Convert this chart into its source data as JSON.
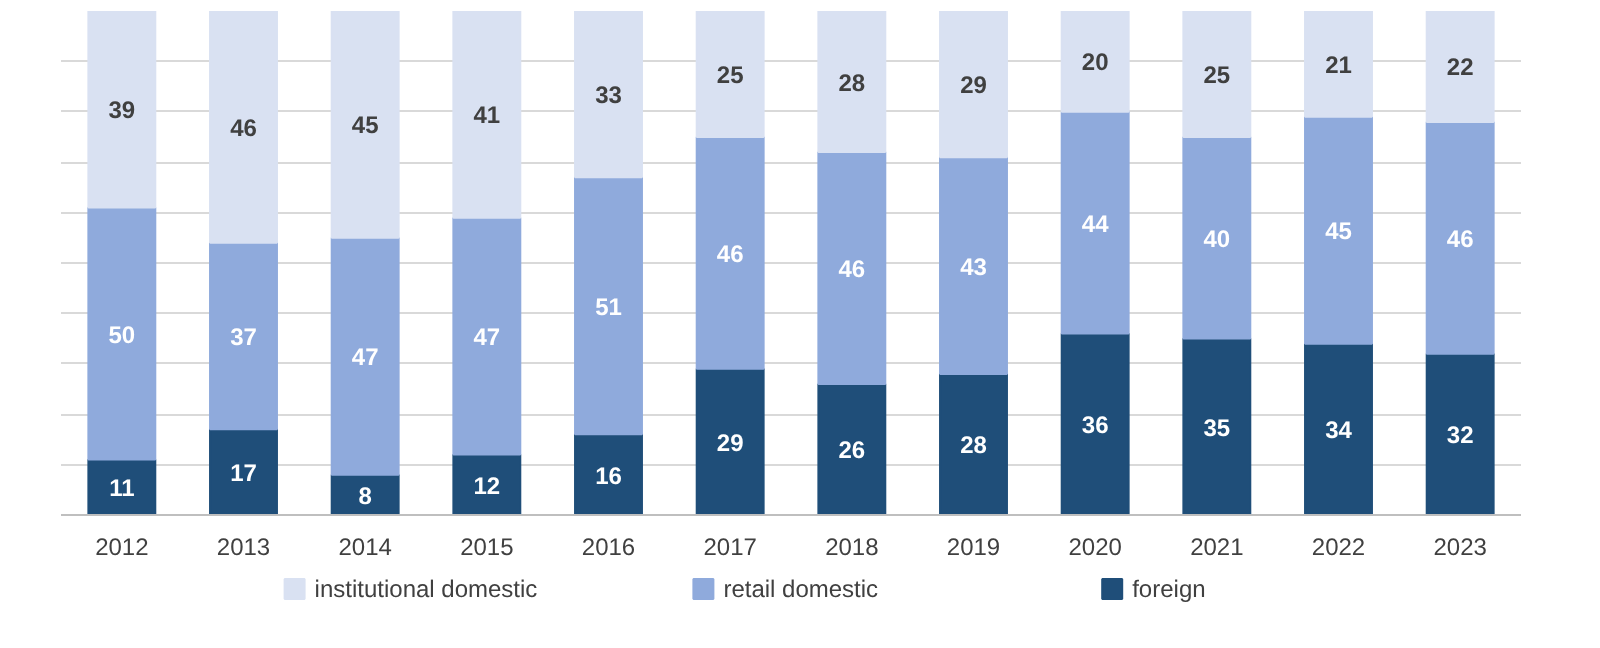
{
  "chart_data": {
    "type": "bar",
    "stacked": true,
    "data_labels": true,
    "grid": "y",
    "legend": "bottom",
    "tick_labels": "x",
    "categories": [
      "2012",
      "2013",
      "2014",
      "2015",
      "2016",
      "2017",
      "2018",
      "2019",
      "2020",
      "2021",
      "2022",
      "2023"
    ],
    "ylim": [
      0,
      100
    ],
    "yticks": [
      {
        "value": 0,
        "label": null
      },
      {
        "value": 10,
        "label": null
      },
      {
        "value": 20,
        "label": null
      },
      {
        "value": 30,
        "label": null
      },
      {
        "value": 40,
        "label": null
      },
      {
        "value": 50,
        "label": null
      },
      {
        "value": 60,
        "label": null
      },
      {
        "value": 70,
        "label": null
      },
      {
        "value": 80,
        "label": null
      },
      {
        "value": 90,
        "label": null
      }
    ],
    "series": [
      {
        "name": "foreign",
        "color": "#1f4e79",
        "values": [
          11,
          17,
          8,
          12,
          16,
          29,
          26,
          28,
          36,
          35,
          34,
          32
        ]
      },
      {
        "name": "retail domestic",
        "color": "#8faadc",
        "values": [
          50,
          37,
          47,
          47,
          51,
          46,
          46,
          43,
          44,
          40,
          45,
          46
        ]
      },
      {
        "name": "institutional domestic",
        "color": "#d9e1f2",
        "values": [
          39,
          46,
          45,
          41,
          33,
          25,
          28,
          29,
          20,
          25,
          21,
          22
        ]
      }
    ]
  }
}
